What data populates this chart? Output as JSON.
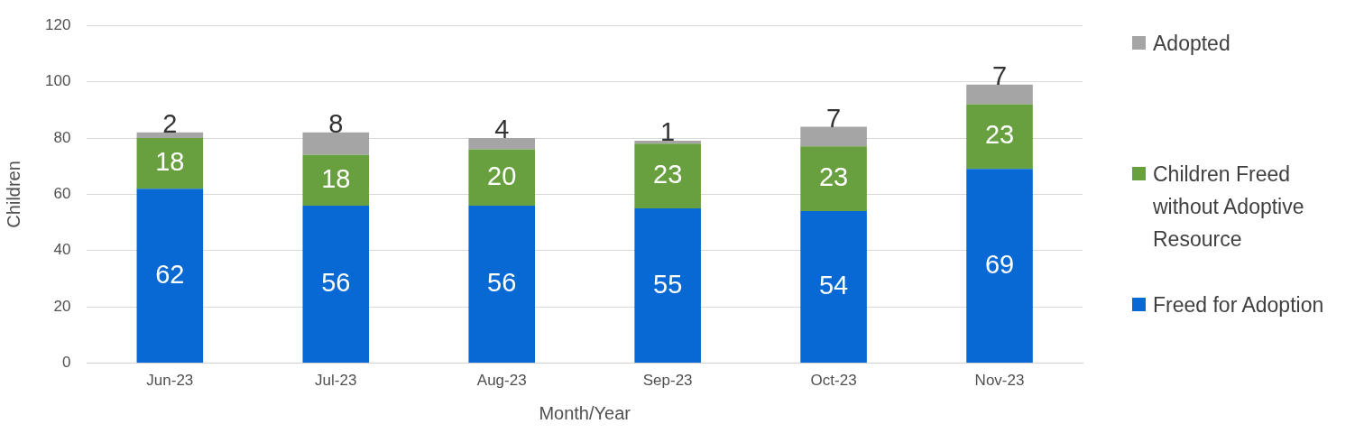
{
  "chart_data": {
    "type": "bar",
    "stacked": true,
    "xlabel": "Month/Year",
    "ylabel": "Children",
    "categories": [
      "Jun-23",
      "Jul-23",
      "Aug-23",
      "Sep-23",
      "Oct-23",
      "Nov-23"
    ],
    "series": [
      {
        "name": "Freed for Adoption",
        "color": "#0868d4",
        "values": [
          62,
          56,
          56,
          55,
          54,
          69
        ]
      },
      {
        "name": "Children Freed without Adoptive Resource",
        "color": "#68a040",
        "values": [
          18,
          18,
          20,
          23,
          23,
          23
        ]
      },
      {
        "name": "Adopted",
        "color": "#a5a5a5",
        "values": [
          2,
          8,
          4,
          1,
          7,
          7
        ]
      }
    ],
    "ylim": [
      0,
      120
    ],
    "yticks": [
      0,
      20,
      40,
      60,
      80,
      100,
      120
    ],
    "grid": "y",
    "legend": "right",
    "data_labels": true
  }
}
